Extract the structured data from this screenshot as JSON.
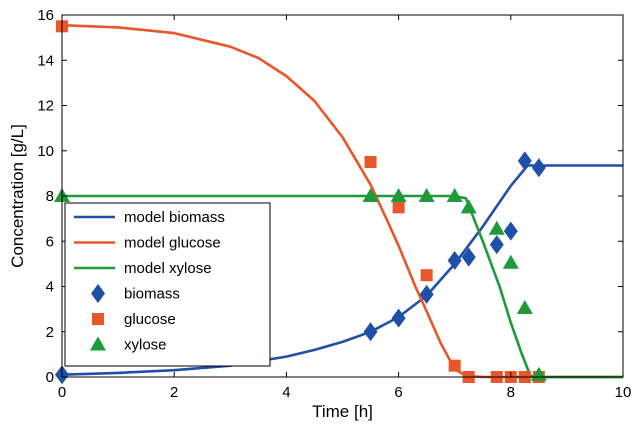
{
  "chart_data": {
    "type": "line",
    "xlabel": "Time [h]",
    "ylabel": "Concentration [g/L]",
    "xlim": [
      0,
      10
    ],
    "ylim": [
      0,
      16
    ],
    "x_ticks": [
      "0",
      "2",
      "4",
      "6",
      "8",
      "10"
    ],
    "y_ticks": [
      "0",
      "2",
      "4",
      "6",
      "8",
      "10",
      "12",
      "14",
      "16"
    ],
    "grid": false,
    "legend_position": "middle-left",
    "colors": {
      "biomass": "#1f4fa8",
      "glucose": "#e8562a",
      "xylose": "#1e9a3a",
      "axis": "#000000"
    },
    "series": [
      {
        "name": "model biomass",
        "kind": "line",
        "color": "#1f4fa8",
        "x": [
          0,
          1,
          2,
          3,
          4,
          4.5,
          5,
          5.5,
          6,
          6.5,
          7,
          7.5,
          8,
          8.3,
          8.5,
          9,
          9.5,
          10
        ],
        "y": [
          0.1,
          0.18,
          0.3,
          0.5,
          0.9,
          1.2,
          1.55,
          2.0,
          2.65,
          3.6,
          5.0,
          6.65,
          8.45,
          9.35,
          9.35,
          9.35,
          9.35,
          9.35
        ]
      },
      {
        "name": "model glucose",
        "kind": "line",
        "color": "#e8562a",
        "x": [
          0,
          1,
          2,
          3,
          3.5,
          4,
          4.5,
          5,
          5.5,
          5.8,
          6,
          6.3,
          6.5,
          6.75,
          7,
          7.2,
          7.5,
          8,
          9,
          10
        ],
        "y": [
          15.55,
          15.45,
          15.2,
          14.6,
          14.1,
          13.3,
          12.2,
          10.6,
          8.5,
          6.9,
          5.8,
          4.0,
          2.9,
          1.5,
          0.35,
          0.05,
          0,
          0,
          0,
          0
        ]
      },
      {
        "name": "model xylose",
        "kind": "line",
        "color": "#1e9a3a",
        "x": [
          0,
          1,
          2,
          3,
          4,
          5,
          6,
          7,
          7.2,
          7.5,
          7.8,
          8.0,
          8.2,
          8.35,
          8.5,
          9,
          10
        ],
        "y": [
          8,
          8,
          8,
          8,
          8,
          8,
          8,
          8,
          7.9,
          6.0,
          4.0,
          2.4,
          1.0,
          0.05,
          0,
          0,
          0
        ]
      },
      {
        "name": "biomass",
        "kind": "scatter",
        "marker": "diamond",
        "color": "#1f4fa8",
        "x": [
          0,
          5.5,
          6.0,
          6.5,
          7.0,
          7.25,
          7.75,
          8.0,
          8.25,
          8.5
        ],
        "y": [
          0.1,
          2.0,
          2.6,
          3.65,
          5.15,
          5.3,
          5.85,
          6.45,
          9.55,
          9.25
        ]
      },
      {
        "name": "glucose",
        "kind": "scatter",
        "marker": "square",
        "color": "#e8562a",
        "x": [
          0,
          5.5,
          6.0,
          6.5,
          7.0,
          7.25,
          7.75,
          8.0,
          8.25,
          8.5
        ],
        "y": [
          15.5,
          9.5,
          7.5,
          4.5,
          0.5,
          0,
          0,
          0,
          0,
          0
        ]
      },
      {
        "name": "xylose",
        "kind": "scatter",
        "marker": "triangle",
        "color": "#1e9a3a",
        "x": [
          0,
          5.5,
          6.0,
          6.5,
          7.0,
          7.25,
          7.75,
          8.0,
          8.25,
          8.5
        ],
        "y": [
          8,
          8,
          8,
          8,
          8,
          7.5,
          6.55,
          5.05,
          3.05,
          0.1
        ]
      }
    ]
  }
}
